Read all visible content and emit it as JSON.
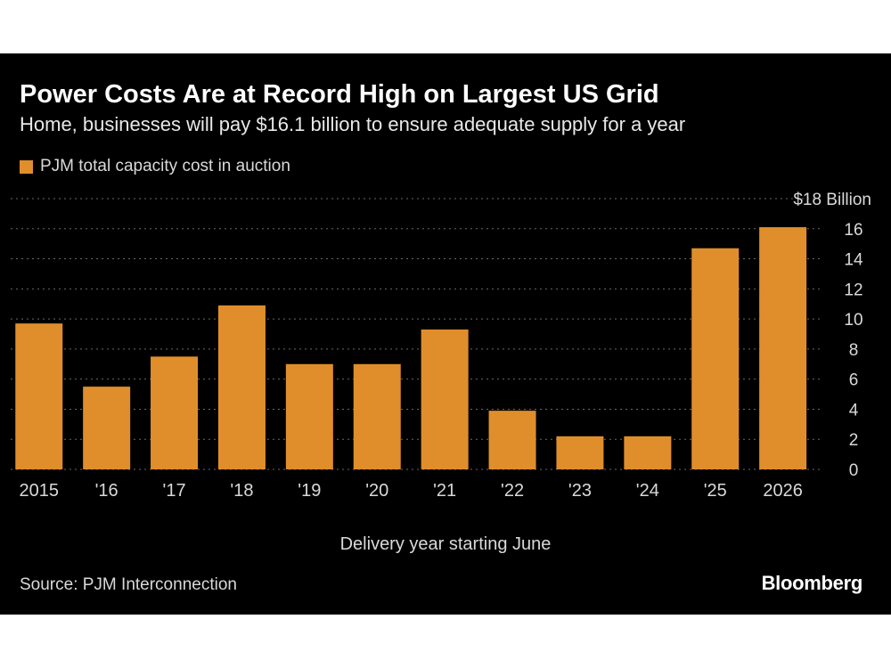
{
  "chart_data": {
    "type": "bar",
    "title": "Power Costs Are at Record High on Largest US Grid",
    "subtitle": "Home, businesses will pay $16.1 billion to ensure adequate supply for a year",
    "legend": "PJM total capacity cost in auction",
    "categories": [
      "2015",
      "'16",
      "'17",
      "'18",
      "'19",
      "'20",
      "'21",
      "'22",
      "'23",
      "'24",
      "'25",
      "2026"
    ],
    "values": [
      9.7,
      5.5,
      7.5,
      10.9,
      7.0,
      7.0,
      9.3,
      3.9,
      2.2,
      2.2,
      14.7,
      16.1
    ],
    "xlabel": "Delivery year starting June",
    "ylabel": "",
    "ylim": [
      0,
      18
    ],
    "yticks": [
      0,
      2,
      4,
      6,
      8,
      10,
      12,
      14,
      16
    ],
    "ytop_label": "$18 Billion",
    "bar_color": "#e08e2b",
    "gridlines": true
  },
  "footer": {
    "source": "Source: PJM Interconnection",
    "brand": "Bloomberg"
  }
}
